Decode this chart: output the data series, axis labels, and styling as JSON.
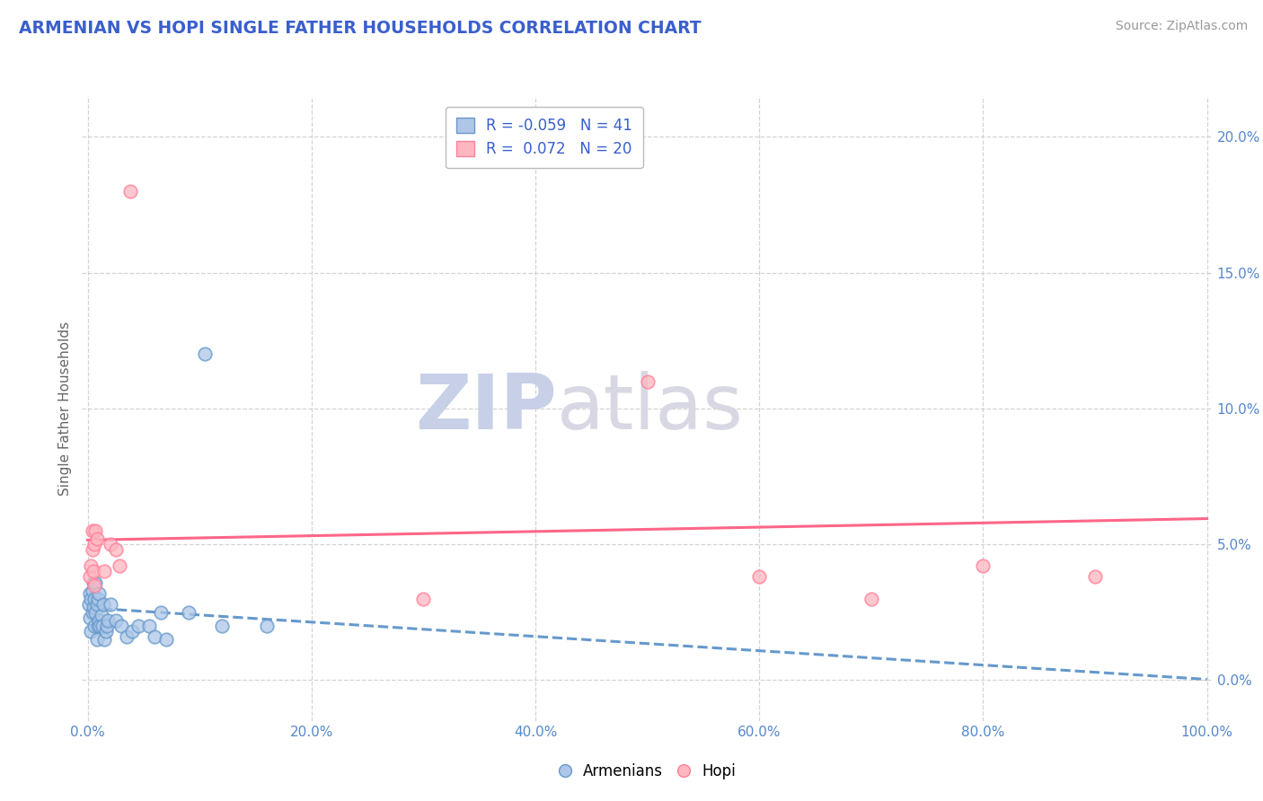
{
  "title": "ARMENIAN VS HOPI SINGLE FATHER HOUSEHOLDS CORRELATION CHART",
  "source": "Source: ZipAtlas.com",
  "ylabel": "Single Father Households",
  "xlim": [
    -0.005,
    1.005
  ],
  "ylim": [
    -0.015,
    0.215
  ],
  "armenian_R": -0.059,
  "armenian_N": 41,
  "hopi_R": 0.072,
  "hopi_N": 20,
  "armenian_color": "#aec7e8",
  "hopi_color": "#ffb6c1",
  "armenian_edge_color": "#6699cc",
  "hopi_edge_color": "#ff8099",
  "armenian_line_color": "#6699cc",
  "hopi_line_color": "#ff6688",
  "background_color": "#ffffff",
  "grid_color": "#cccccc",
  "title_color": "#3a5fcd",
  "source_color": "#999999",
  "tick_color": "#5588cc",
  "watermark_zip_color": "#d0d8f0",
  "watermark_atlas_color": "#d8d8e8",
  "armenian_scatter_x": [
    0.001,
    0.002,
    0.002,
    0.003,
    0.003,
    0.004,
    0.004,
    0.005,
    0.005,
    0.006,
    0.006,
    0.007,
    0.007,
    0.008,
    0.008,
    0.009,
    0.009,
    0.01,
    0.01,
    0.011,
    0.012,
    0.013,
    0.014,
    0.015,
    0.016,
    0.017,
    0.018,
    0.02,
    0.025,
    0.03,
    0.035,
    0.04,
    0.045,
    0.055,
    0.06,
    0.065,
    0.07,
    0.09,
    0.12,
    0.16,
    0.105
  ],
  "armenian_scatter_y": [
    0.028,
    0.023,
    0.032,
    0.018,
    0.03,
    0.025,
    0.033,
    0.027,
    0.036,
    0.03,
    0.02,
    0.025,
    0.036,
    0.015,
    0.028,
    0.02,
    0.03,
    0.022,
    0.032,
    0.02,
    0.024,
    0.02,
    0.028,
    0.015,
    0.018,
    0.02,
    0.022,
    0.028,
    0.022,
    0.02,
    0.016,
    0.018,
    0.02,
    0.02,
    0.016,
    0.025,
    0.015,
    0.025,
    0.02,
    0.02,
    0.12
  ],
  "hopi_scatter_x": [
    0.002,
    0.003,
    0.004,
    0.004,
    0.005,
    0.006,
    0.006,
    0.007,
    0.008,
    0.015,
    0.02,
    0.025,
    0.028,
    0.038,
    0.3,
    0.5,
    0.6,
    0.7,
    0.8,
    0.9
  ],
  "hopi_scatter_y": [
    0.038,
    0.042,
    0.048,
    0.055,
    0.04,
    0.035,
    0.05,
    0.055,
    0.052,
    0.04,
    0.05,
    0.048,
    0.042,
    0.18,
    0.03,
    0.11,
    0.038,
    0.03,
    0.042,
    0.038
  ],
  "xticks": [
    0.0,
    0.2,
    0.4,
    0.6,
    0.8,
    1.0
  ],
  "yticks": [
    0.0,
    0.05,
    0.1,
    0.15,
    0.2
  ]
}
